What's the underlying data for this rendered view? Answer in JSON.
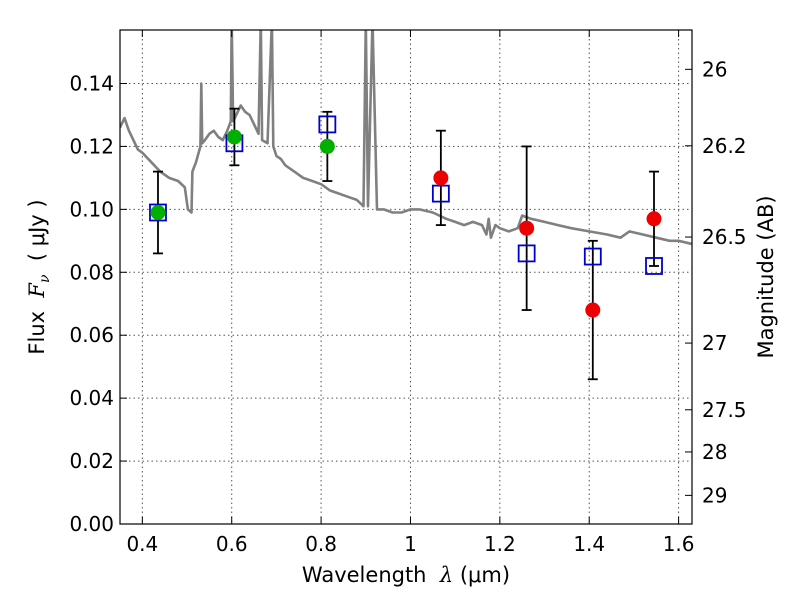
{
  "chart_data": {
    "type": "scatter",
    "xlabel_prefix": "Wavelength  ",
    "xlabel_symbol": "λ",
    "xlabel_unit": " (μm)",
    "ylabel_prefix": "Flux  ",
    "ylabel_symbol": "F",
    "ylabel_sub": "ν",
    "ylabel_unit": "  ( μJy )",
    "y2label": "Magnitude (AB)",
    "xlim": [
      0.35,
      1.63
    ],
    "ylim": [
      0.0,
      0.157
    ],
    "grid": true,
    "xticks": [
      0.4,
      0.6,
      0.8,
      1.0,
      1.2,
      1.4,
      1.6
    ],
    "xtick_labels": [
      "0.4",
      "0.6",
      "0.8",
      "1",
      "1.2",
      "1.4",
      "1.6"
    ],
    "yticks": [
      0.0,
      0.02,
      0.04,
      0.06,
      0.08,
      0.1,
      0.12,
      0.14
    ],
    "ytick_labels": [
      "0.00",
      "0.02",
      "0.04",
      "0.06",
      "0.08",
      "0.10",
      "0.12",
      "0.14"
    ],
    "mag_ticks": [
      {
        "label": "26",
        "flux": 0.1445
      },
      {
        "label": "26.2",
        "flux": 0.1202
      },
      {
        "label": "26.5",
        "flux": 0.0912
      },
      {
        "label": "27",
        "flux": 0.0575
      },
      {
        "label": "27.5",
        "flux": 0.0363
      },
      {
        "label": "28",
        "flux": 0.0229
      },
      {
        "label": "29",
        "flux": 0.0091
      }
    ],
    "observed_errorbars": [
      {
        "x": 0.435,
        "y": 0.099,
        "ylow": 0.086,
        "yhigh": 0.112
      },
      {
        "x": 0.606,
        "y": 0.123,
        "ylow": 0.114,
        "yhigh": 0.132
      },
      {
        "x": 0.814,
        "y": 0.12,
        "ylow": 0.109,
        "yhigh": 0.131
      },
      {
        "x": 1.068,
        "y": 0.11,
        "ylow": 0.095,
        "yhigh": 0.125
      },
      {
        "x": 1.26,
        "y": 0.094,
        "ylow": 0.068,
        "yhigh": 0.12
      },
      {
        "x": 1.408,
        "y": 0.068,
        "ylow": 0.046,
        "yhigh": 0.09
      },
      {
        "x": 1.545,
        "y": 0.097,
        "ylow": 0.082,
        "yhigh": 0.112
      }
    ],
    "model_photometry": [
      {
        "x": 0.435,
        "y": 0.099
      },
      {
        "x": 0.606,
        "y": 0.121
      },
      {
        "x": 0.814,
        "y": 0.127
      },
      {
        "x": 1.068,
        "y": 0.105
      },
      {
        "x": 1.26,
        "y": 0.086
      },
      {
        "x": 1.408,
        "y": 0.085
      },
      {
        "x": 1.545,
        "y": 0.082
      }
    ],
    "optical_detections": [
      {
        "x": 0.435,
        "y": 0.099
      },
      {
        "x": 0.606,
        "y": 0.123
      },
      {
        "x": 0.814,
        "y": 0.12
      }
    ],
    "nir_detections": [
      {
        "x": 1.068,
        "y": 0.11
      },
      {
        "x": 1.26,
        "y": 0.094
      },
      {
        "x": 1.408,
        "y": 0.068
      },
      {
        "x": 1.545,
        "y": 0.097
      }
    ],
    "model_spectrum": [
      [
        0.35,
        0.126
      ],
      [
        0.36,
        0.129
      ],
      [
        0.37,
        0.125
      ],
      [
        0.38,
        0.122
      ],
      [
        0.39,
        0.119
      ],
      [
        0.4,
        0.118
      ],
      [
        0.42,
        0.115
      ],
      [
        0.44,
        0.112
      ],
      [
        0.46,
        0.11
      ],
      [
        0.48,
        0.109
      ],
      [
        0.495,
        0.107
      ],
      [
        0.502,
        0.1
      ],
      [
        0.51,
        0.099
      ],
      [
        0.512,
        0.112
      ],
      [
        0.52,
        0.115
      ],
      [
        0.53,
        0.12
      ],
      [
        0.532,
        0.14
      ],
      [
        0.534,
        0.121
      ],
      [
        0.54,
        0.122
      ],
      [
        0.55,
        0.124
      ],
      [
        0.56,
        0.125
      ],
      [
        0.57,
        0.123
      ],
      [
        0.58,
        0.122
      ],
      [
        0.59,
        0.125
      ],
      [
        0.598,
        0.128
      ],
      [
        0.6,
        0.16
      ],
      [
        0.603,
        0.128
      ],
      [
        0.61,
        0.13
      ],
      [
        0.62,
        0.133
      ],
      [
        0.63,
        0.131
      ],
      [
        0.64,
        0.13
      ],
      [
        0.65,
        0.127
      ],
      [
        0.66,
        0.124
      ],
      [
        0.665,
        0.16
      ],
      [
        0.668,
        0.122
      ],
      [
        0.68,
        0.121
      ],
      [
        0.69,
        0.16
      ],
      [
        0.693,
        0.12
      ],
      [
        0.7,
        0.117
      ],
      [
        0.71,
        0.116
      ],
      [
        0.72,
        0.114
      ],
      [
        0.73,
        0.113
      ],
      [
        0.74,
        0.112
      ],
      [
        0.76,
        0.11
      ],
      [
        0.78,
        0.109
      ],
      [
        0.8,
        0.108
      ],
      [
        0.82,
        0.106
      ],
      [
        0.84,
        0.105
      ],
      [
        0.86,
        0.104
      ],
      [
        0.88,
        0.103
      ],
      [
        0.895,
        0.101
      ],
      [
        0.9,
        0.16
      ],
      [
        0.905,
        0.101
      ],
      [
        0.915,
        0.16
      ],
      [
        0.925,
        0.1
      ],
      [
        0.94,
        0.1
      ],
      [
        0.96,
        0.099
      ],
      [
        0.98,
        0.099
      ],
      [
        1.0,
        0.1
      ],
      [
        1.02,
        0.1
      ],
      [
        1.05,
        0.099
      ],
      [
        1.08,
        0.097
      ],
      [
        1.1,
        0.096
      ],
      [
        1.12,
        0.095
      ],
      [
        1.14,
        0.096
      ],
      [
        1.16,
        0.095
      ],
      [
        1.17,
        0.092
      ],
      [
        1.175,
        0.097
      ],
      [
        1.18,
        0.091
      ],
      [
        1.19,
        0.095
      ],
      [
        1.2,
        0.094
      ],
      [
        1.22,
        0.093
      ],
      [
        1.24,
        0.094
      ],
      [
        1.25,
        0.098
      ],
      [
        1.27,
        0.097
      ],
      [
        1.3,
        0.096
      ],
      [
        1.33,
        0.095
      ],
      [
        1.36,
        0.094
      ],
      [
        1.4,
        0.093
      ],
      [
        1.44,
        0.092
      ],
      [
        1.47,
        0.091
      ],
      [
        1.49,
        0.093
      ],
      [
        1.52,
        0.092
      ],
      [
        1.55,
        0.091
      ],
      [
        1.58,
        0.09
      ],
      [
        1.6,
        0.09
      ],
      [
        1.63,
        0.089
      ]
    ],
    "colors": {
      "spectrum": "#808080",
      "model_marker": "#0000cc",
      "optical": "#00b000",
      "nir": "#ee0000",
      "errorbar": "#000000",
      "grid": "#555555"
    }
  }
}
